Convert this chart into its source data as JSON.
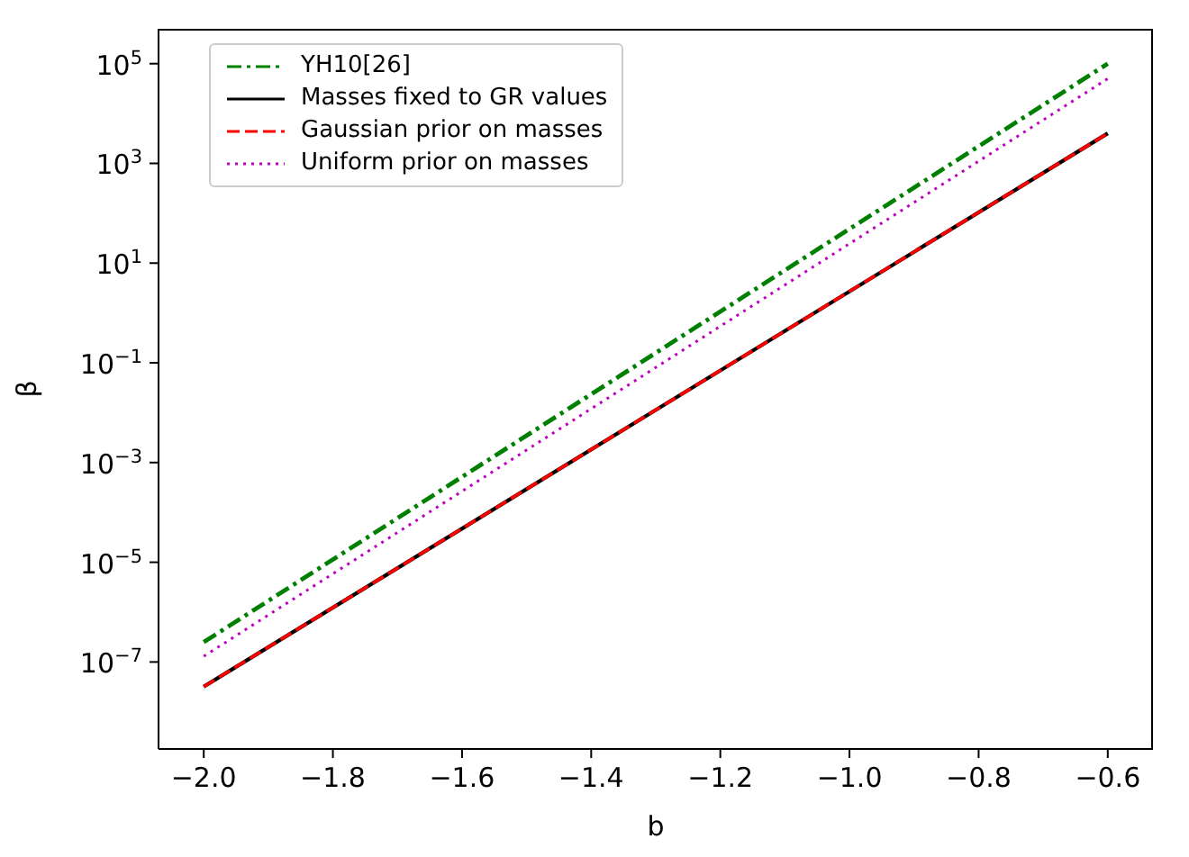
{
  "chart_data": {
    "type": "line",
    "xlabel": "b",
    "ylabel": "β",
    "log": "y",
    "grid": false,
    "legend": "top left",
    "marker": "none",
    "xlim": [
      -2.07,
      -0.53
    ],
    "xticks": [
      {
        "value": -2,
        "label": "−2.0"
      },
      {
        "value": -1.8,
        "label": "−1.8"
      },
      {
        "value": -1.6,
        "label": "−1.6"
      },
      {
        "value": -1.4,
        "label": "−1.4"
      },
      {
        "value": -1.2,
        "label": "−1.2"
      },
      {
        "value": -1,
        "label": "−1.0"
      },
      {
        "value": -0.8,
        "label": "−0.8"
      },
      {
        "value": -0.6,
        "label": "−0.6"
      }
    ],
    "ylim": [
      1.8e-09,
      500000.0
    ],
    "yticks": [
      {
        "value": 1e-07,
        "label": "10$^{−7}$"
      },
      {
        "value": 1e-05,
        "label": "10$^{−5}$"
      },
      {
        "value": 0.001,
        "label": "10$^{−3}$"
      },
      {
        "value": 0.1,
        "label": "10$^{−1}$"
      },
      {
        "value": 10,
        "label": "10$^{1}$"
      },
      {
        "value": 1000,
        "label": "10$^{3}$"
      },
      {
        "value": 100000,
        "label": "10$^{5}$"
      }
    ],
    "x": [
      -2,
      -0.6
    ],
    "series": [
      {
        "name": "YH10[26]",
        "color": "#008000",
        "line_style": "dashdot",
        "values": [
          2.5e-07,
          100000.0
        ]
      },
      {
        "name": "Masses fixed to GR values",
        "color": "#000000",
        "line_style": "solid",
        "values": [
          3.2e-08,
          4000.0
        ]
      },
      {
        "name": "Gaussian prior on masses",
        "color": "#ff0000",
        "line_style": "dashed",
        "values": [
          3.2e-08,
          4000.0
        ]
      },
      {
        "name": "Uniform prior on masses",
        "color": "#bf00bf",
        "line_style": "dotted",
        "values": [
          1.3e-07,
          50000.0
        ]
      }
    ]
  }
}
